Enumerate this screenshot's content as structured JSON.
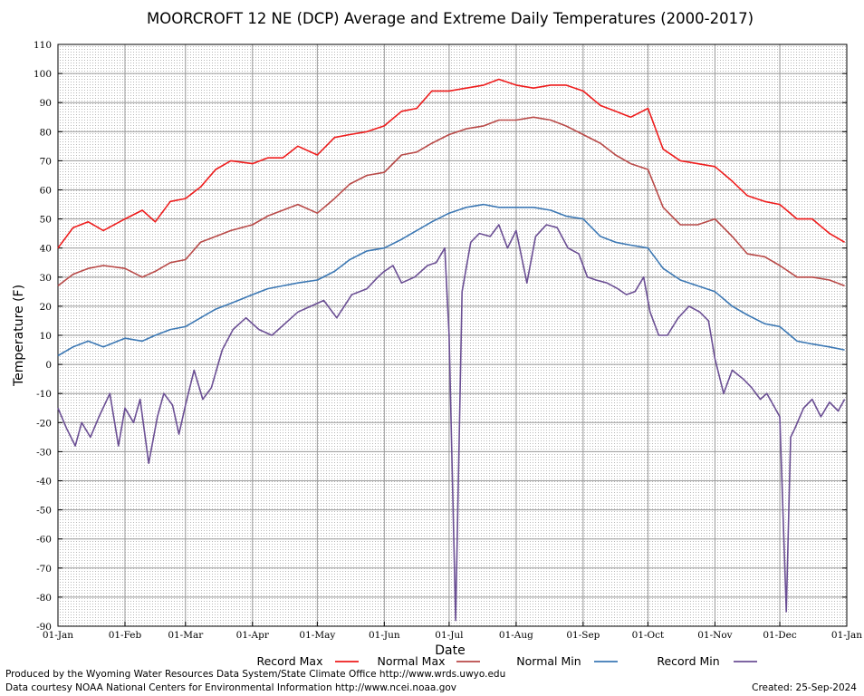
{
  "chart_data": {
    "type": "line",
    "title": "MOORCROFT 12 NE (DCP) Average and Extreme Daily Temperatures (2000-2017)",
    "xlabel": "Date",
    "ylabel": "Temperature (F)",
    "ylim": [
      -90,
      110
    ],
    "y_ticks": [
      110,
      100,
      90,
      80,
      70,
      60,
      50,
      40,
      30,
      20,
      10,
      0,
      -10,
      -20,
      -30,
      -40,
      -50,
      -60,
      -70,
      -80,
      -90
    ],
    "x_ticks": [
      {
        "label": "01-Jan",
        "day": 1
      },
      {
        "label": "01-Feb",
        "day": 32
      },
      {
        "label": "01-Mar",
        "day": 60
      },
      {
        "label": "01-Apr",
        "day": 91
      },
      {
        "label": "01-May",
        "day": 121
      },
      {
        "label": "01-Jun",
        "day": 152
      },
      {
        "label": "01-Jul",
        "day": 182
      },
      {
        "label": "01-Aug",
        "day": 213
      },
      {
        "label": "01-Sep",
        "day": 244
      },
      {
        "label": "01-Oct",
        "day": 274
      },
      {
        "label": "01-Nov",
        "day": 305
      },
      {
        "label": "01-Dec",
        "day": 335
      },
      {
        "label": "01-Jan",
        "day": 366
      }
    ],
    "grid": true,
    "legend_position": "bottom",
    "series": [
      {
        "name": "Record Max",
        "color": "#ee1c1c",
        "x": [
          1,
          8,
          15,
          22,
          32,
          40,
          46,
          53,
          60,
          67,
          74,
          81,
          91,
          98,
          105,
          112,
          121,
          129,
          136,
          144,
          152,
          160,
          167,
          174,
          182,
          190,
          198,
          205,
          213,
          221,
          229,
          236,
          244,
          252,
          259,
          266,
          274,
          281,
          289,
          297,
          305,
          313,
          320,
          328,
          335,
          343,
          350,
          358,
          365
        ],
        "y": [
          40,
          47,
          49,
          46,
          50,
          53,
          49,
          56,
          57,
          61,
          67,
          70,
          69,
          71,
          71,
          75,
          72,
          78,
          79,
          80,
          82,
          87,
          88,
          94,
          94,
          95,
          96,
          98,
          96,
          95,
          96,
          96,
          94,
          89,
          87,
          85,
          88,
          74,
          70,
          69,
          68,
          63,
          58,
          56,
          55,
          50,
          50,
          45,
          42
        ]
      },
      {
        "name": "Normal Max",
        "color": "#b94a48",
        "x": [
          1,
          8,
          15,
          22,
          32,
          40,
          46,
          53,
          60,
          67,
          74,
          81,
          91,
          98,
          105,
          112,
          121,
          129,
          136,
          144,
          152,
          160,
          167,
          174,
          182,
          190,
          198,
          205,
          213,
          221,
          229,
          236,
          244,
          252,
          259,
          266,
          274,
          281,
          289,
          297,
          305,
          313,
          320,
          328,
          335,
          343,
          350,
          358,
          365
        ],
        "y": [
          27,
          31,
          33,
          34,
          33,
          30,
          32,
          35,
          36,
          42,
          44,
          46,
          48,
          51,
          53,
          55,
          52,
          57,
          62,
          65,
          66,
          72,
          73,
          76,
          79,
          81,
          82,
          84,
          84,
          85,
          84,
          82,
          79,
          76,
          72,
          69,
          67,
          54,
          48,
          48,
          50,
          44,
          38,
          37,
          34,
          30,
          30,
          29,
          27
        ]
      },
      {
        "name": "Normal Min",
        "color": "#3c78b4",
        "x": [
          1,
          8,
          15,
          22,
          32,
          40,
          46,
          53,
          60,
          67,
          74,
          81,
          91,
          98,
          105,
          112,
          121,
          129,
          136,
          144,
          152,
          160,
          167,
          174,
          182,
          190,
          198,
          205,
          213,
          221,
          229,
          236,
          244,
          252,
          259,
          266,
          274,
          281,
          289,
          297,
          305,
          313,
          320,
          328,
          335,
          343,
          350,
          358,
          365
        ],
        "y": [
          3,
          6,
          8,
          6,
          9,
          8,
          10,
          12,
          13,
          16,
          19,
          21,
          24,
          26,
          27,
          28,
          29,
          32,
          36,
          39,
          40,
          43,
          46,
          49,
          52,
          54,
          55,
          54,
          54,
          54,
          53,
          51,
          50,
          44,
          42,
          41,
          40,
          33,
          29,
          27,
          25,
          20,
          17,
          14,
          13,
          8,
          7,
          6,
          5
        ]
      },
      {
        "name": "Record Min",
        "color": "#6b4f94",
        "x": [
          1,
          5,
          9,
          12,
          16,
          20,
          25,
          29,
          32,
          36,
          39,
          43,
          47,
          50,
          54,
          57,
          60,
          64,
          68,
          72,
          77,
          82,
          88,
          94,
          100,
          106,
          112,
          118,
          124,
          130,
          137,
          144,
          149,
          152,
          156,
          160,
          166,
          172,
          176,
          180,
          182,
          185,
          188,
          192,
          196,
          201,
          205,
          209,
          213,
          218,
          222,
          227,
          232,
          237,
          242,
          246,
          250,
          255,
          260,
          264,
          268,
          272,
          275,
          279,
          283,
          288,
          293,
          298,
          302,
          305,
          309,
          313,
          318,
          322,
          326,
          329,
          332,
          335,
          338,
          340,
          342,
          346,
          350,
          354,
          358,
          362,
          365
        ],
        "y": [
          -15,
          -22,
          -28,
          -20,
          -25,
          -18,
          -10,
          -28,
          -15,
          -20,
          -12,
          -34,
          -18,
          -10,
          -14,
          -24,
          -14,
          -2,
          -12,
          -8,
          5,
          12,
          16,
          12,
          10,
          14,
          18,
          20,
          22,
          16,
          24,
          26,
          30,
          32,
          34,
          28,
          30,
          34,
          35,
          40,
          10,
          -88,
          25,
          42,
          45,
          44,
          48,
          40,
          46,
          28,
          44,
          48,
          47,
          40,
          38,
          30,
          29,
          28,
          26,
          24,
          25,
          30,
          18,
          10,
          10,
          16,
          20,
          18,
          15,
          2,
          -10,
          -2,
          -5,
          -8,
          -12,
          -10,
          -14,
          -18,
          -85,
          -25,
          -22,
          -15,
          -12,
          -18,
          -13,
          -16,
          -12
        ]
      }
    ]
  },
  "footer": {
    "line1": "Produced by the Wyoming Water Resources Data System/State Climate Office http://www.wrds.uwyo.edu",
    "line2": "Data courtesy NOAA National Centers for Environmental Information http://www.ncei.noaa.gov",
    "created": "Created:  25-Sep-2024"
  }
}
